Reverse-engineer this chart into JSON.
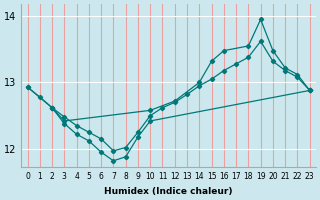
{
  "xlabel": "Humidex (Indice chaleur)",
  "background_color": "#cce8ee",
  "vgrid_color": "#e8a0a0",
  "hgrid_color": "#ffffff",
  "line_color": "#007878",
  "xlim": [
    -0.5,
    23.5
  ],
  "ylim": [
    11.72,
    14.18
  ],
  "yticks": [
    12,
    13,
    14
  ],
  "xticks": [
    0,
    1,
    2,
    3,
    4,
    5,
    6,
    7,
    8,
    9,
    10,
    11,
    12,
    13,
    14,
    15,
    16,
    17,
    18,
    19,
    20,
    21,
    22,
    23
  ],
  "line_top_x": [
    0,
    2,
    3,
    10,
    12,
    14,
    15,
    16,
    18,
    19,
    20,
    21,
    22,
    23
  ],
  "line_top_y": [
    12.93,
    12.62,
    12.42,
    12.58,
    12.72,
    13.0,
    13.32,
    13.48,
    13.55,
    13.95,
    13.48,
    13.22,
    13.12,
    12.88
  ],
  "line_bot_x": [
    2,
    3,
    4,
    5,
    6,
    7,
    8,
    9,
    10,
    23
  ],
  "line_bot_y": [
    12.62,
    12.38,
    12.22,
    12.12,
    11.95,
    11.82,
    11.88,
    12.18,
    12.42,
    12.88
  ],
  "line_mid_x": [
    0,
    1,
    2,
    3,
    4,
    5,
    6,
    7,
    8,
    9,
    10,
    11,
    12,
    13,
    14,
    15,
    16,
    17,
    18,
    19,
    20,
    21,
    22,
    23
  ],
  "line_mid_y": [
    12.93,
    12.78,
    12.62,
    12.48,
    12.35,
    12.25,
    12.15,
    11.97,
    12.02,
    12.25,
    12.5,
    12.62,
    12.7,
    12.82,
    12.95,
    13.05,
    13.18,
    13.28,
    13.38,
    13.62,
    13.32,
    13.18,
    13.08,
    12.88
  ]
}
